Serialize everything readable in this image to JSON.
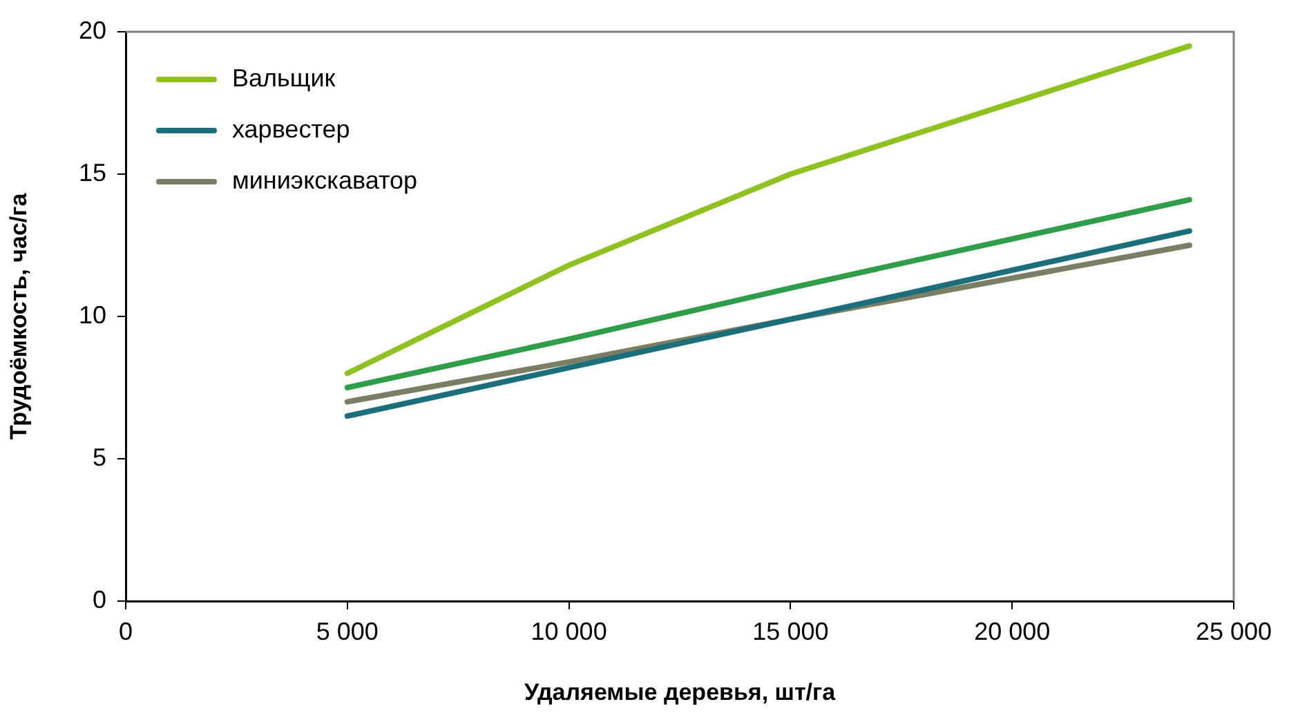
{
  "chart_data": {
    "type": "line",
    "xlabel": "Удаляемые деревья, шт/га",
    "ylabel": "Трудоёмкость, час/га",
    "x": [
      5000,
      10000,
      15000,
      24000
    ],
    "series": [
      {
        "name": "Вальщик",
        "color": "#8dc21f",
        "values": [
          8.0,
          11.8,
          15.0,
          19.5
        ]
      },
      {
        "color": "#2e9e48",
        "values": [
          7.5,
          9.2,
          11.0,
          14.1
        ]
      },
      {
        "name": "харвестер",
        "color": "#1b6f7a",
        "values": [
          6.5,
          8.2,
          9.9,
          13.0
        ]
      },
      {
        "name": "миниэкскаватор",
        "color": "#7a7e62",
        "values": [
          7.0,
          8.4,
          9.9,
          12.5
        ]
      }
    ],
    "xlim": [
      0,
      25000
    ],
    "xticks": [
      0,
      {
        "value": 5000,
        "label": "5 000"
      },
      {
        "value": 10000,
        "label": "10 000"
      },
      {
        "value": 15000,
        "label": "15 000"
      },
      {
        "value": 20000,
        "label": "20 000"
      },
      {
        "value": 25000,
        "label": "25 000"
      }
    ],
    "ylim": [
      0,
      20
    ],
    "yticks": [
      0,
      5,
      10,
      15,
      20
    ],
    "grid": false,
    "legend": "top left",
    "marker": "none",
    "line_style": "solid"
  }
}
